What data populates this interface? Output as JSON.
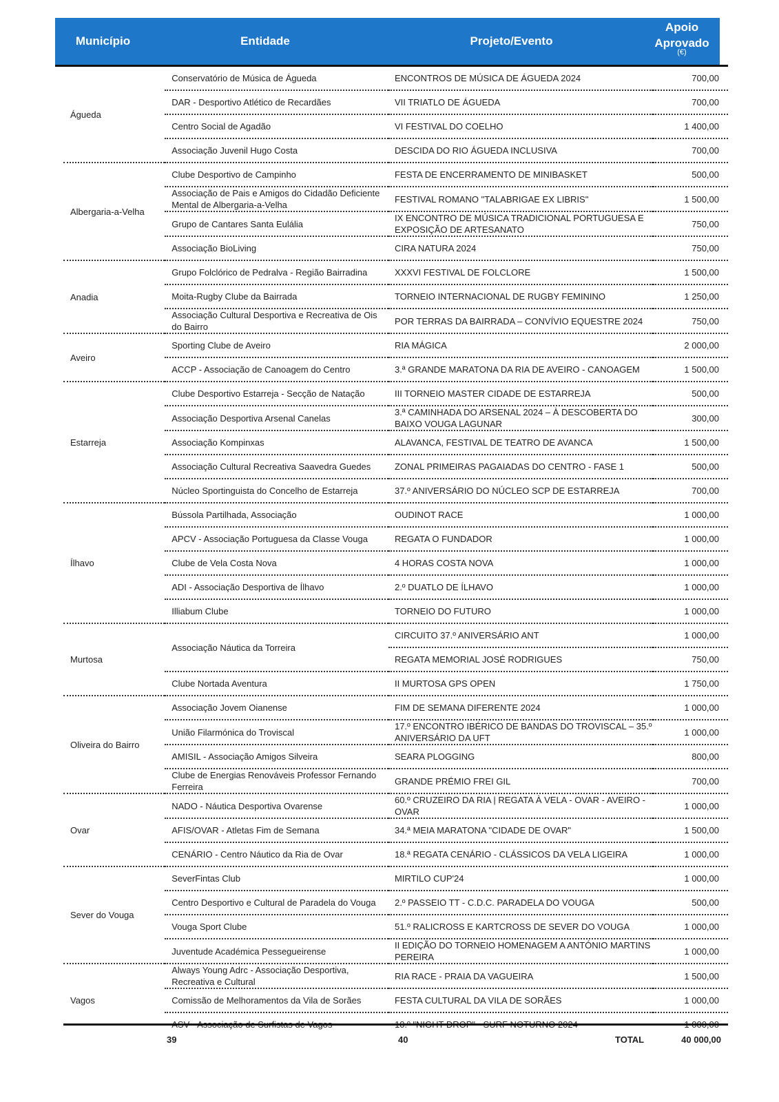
{
  "header": {
    "municipio": "Município",
    "entidade": "Entidade",
    "projeto": "Projeto/Evento",
    "apoio_line1": "Apoio",
    "apoio_line2": "Aprovado",
    "apoio_unit": "(€)"
  },
  "header_color": "#1f77c9",
  "groups": [
    {
      "municipio": "Águeda",
      "rows": [
        {
          "entidade": "Conservatório de Música de Águeda",
          "projetos": [
            {
              "projeto": "ENCONTROS DE MÚSICA DE ÁGUEDA 2024",
              "valor": "700,00"
            }
          ]
        },
        {
          "entidade": "DAR - Desportivo Atlético de Recardães",
          "projetos": [
            {
              "projeto": "VII TRIATLO DE ÁGUEDA",
              "valor": "700,00"
            }
          ]
        },
        {
          "entidade": "Centro Social de Agadão",
          "projetos": [
            {
              "projeto": "VI FESTIVAL DO COELHO",
              "valor": "1 400,00"
            }
          ]
        },
        {
          "entidade": "Associação Juvenil Hugo Costa",
          "projetos": [
            {
              "projeto": "DESCIDA DO RIO ÁGUEDA INCLUSIVA",
              "valor": "700,00"
            }
          ]
        }
      ]
    },
    {
      "municipio": "Albergaria-a-Velha",
      "rows": [
        {
          "entidade": "Clube Desportivo de Campinho",
          "projetos": [
            {
              "projeto": "FESTA DE ENCERRAMENTO DE MINIBASKET",
              "valor": "500,00"
            }
          ]
        },
        {
          "entidade": "Associação de Pais e Amigos do Cidadão Deficiente Mental de Albergaria-a-Velha",
          "projetos": [
            {
              "projeto": "FESTIVAL ROMANO \"TALABRIGAE EX LIBRIS\"",
              "valor": "1 500,00"
            }
          ]
        },
        {
          "entidade": "Grupo de Cantares Santa Eulália",
          "projetos": [
            {
              "projeto": "IX ENCONTRO DE MÚSICA TRADICIONAL PORTUGUESA E EXPOSIÇÃO DE ARTESANATO",
              "valor": "750,00"
            }
          ]
        },
        {
          "entidade": "Associação BioLiving",
          "projetos": [
            {
              "projeto": "CIRA NATURA 2024",
              "valor": "750,00"
            }
          ]
        }
      ]
    },
    {
      "municipio": "Anadia",
      "rows": [
        {
          "entidade": "Grupo Folclórico de Pedralva - Região Bairradina",
          "projetos": [
            {
              "projeto": "XXXVI FESTIVAL DE FOLCLORE",
              "valor": "1 500,00"
            }
          ]
        },
        {
          "entidade": "Moita-Rugby Clube da Bairrada",
          "projetos": [
            {
              "projeto": "TORNEIO INTERNACIONAL DE RUGBY FEMININO",
              "valor": "1 250,00"
            }
          ]
        },
        {
          "entidade": "Associação Cultural Desportiva e Recreativa de Ois do Bairro",
          "projetos": [
            {
              "projeto": "POR TERRAS DA BAIRRADA – CONVÍVIO EQUESTRE 2024",
              "valor": "750,00"
            }
          ]
        }
      ]
    },
    {
      "municipio": "Aveiro",
      "rows": [
        {
          "entidade": "Sporting Clube de Aveiro",
          "projetos": [
            {
              "projeto": "RIA MÁGICA",
              "valor": "2 000,00"
            }
          ]
        },
        {
          "entidade": "ACCP - Associação de Canoagem do Centro",
          "projetos": [
            {
              "projeto": "3.ª GRANDE MARATONA DA RIA DE AVEIRO - CANOAGEM",
              "valor": "1 500,00"
            }
          ]
        }
      ]
    },
    {
      "municipio": "Estarreja",
      "rows": [
        {
          "entidade": "Clube Desportivo Estarreja - Secção de Natação",
          "projetos": [
            {
              "projeto": "III TORNEIO MASTER CIDADE DE ESTARREJA",
              "valor": "500,00"
            }
          ]
        },
        {
          "entidade": "Associação Desportiva Arsenal Canelas",
          "projetos": [
            {
              "projeto": "3.ª CAMINHADA DO ARSENAL 2024 – À DESCOBERTA DO BAIXO VOUGA LAGUNAR",
              "valor": "300,00"
            }
          ]
        },
        {
          "entidade": "Associação Kompinxas",
          "projetos": [
            {
              "projeto": "ALAVANCA, FESTIVAL DE TEATRO DE AVANCA",
              "valor": "1 500,00"
            }
          ]
        },
        {
          "entidade": "Associação Cultural Recreativa Saavedra Guedes",
          "projetos": [
            {
              "projeto": "ZONAL PRIMEIRAS PAGAIADAS DO CENTRO - FASE 1",
              "valor": "500,00"
            }
          ]
        },
        {
          "entidade": "Núcleo Sportinguista do Concelho de Estarreja",
          "projetos": [
            {
              "projeto": "37.º ANIVERSÁRIO DO NÚCLEO SCP DE ESTARREJA",
              "valor": "700,00"
            }
          ]
        }
      ]
    },
    {
      "municipio": "Ílhavo",
      "rows": [
        {
          "entidade": "Bússola Partilhada, Associação",
          "projetos": [
            {
              "projeto": "OUDINOT RACE",
              "valor": "1 000,00"
            }
          ]
        },
        {
          "entidade": "APCV - Associação Portuguesa da Classe Vouga",
          "projetos": [
            {
              "projeto": "REGATA O FUNDADOR",
              "valor": "1 000,00"
            }
          ]
        },
        {
          "entidade": "Clube de Vela Costa Nova",
          "projetos": [
            {
              "projeto": "4 HORAS COSTA NOVA",
              "valor": "1 000,00"
            }
          ]
        },
        {
          "entidade": "ADI - Associação Desportiva de Ílhavo",
          "projetos": [
            {
              "projeto": "2.º DUATLO DE ÍLHAVO",
              "valor": "1 000,00"
            }
          ]
        },
        {
          "entidade": "Illiabum Clube",
          "projetos": [
            {
              "projeto": "TORNEIO DO FUTURO",
              "valor": "1 000,00"
            }
          ]
        }
      ]
    },
    {
      "municipio": "Murtosa",
      "rows": [
        {
          "entidade": "Associação Náutica da Torreira",
          "projetos": [
            {
              "projeto": "CIRCUITO 37.º ANIVERSÁRIO ANT",
              "valor": "1 000,00"
            },
            {
              "projeto": "REGATA MEMORIAL JOSÉ RODRIGUES",
              "valor": "750,00"
            }
          ]
        },
        {
          "entidade": "Clube Nortada Aventura",
          "projetos": [
            {
              "projeto": "II MURTOSA GPS OPEN",
              "valor": "1 750,00"
            }
          ]
        }
      ]
    },
    {
      "municipio": "Oliveira do Bairro",
      "rows": [
        {
          "entidade": "Associação Jovem Oianense",
          "projetos": [
            {
              "projeto": "FIM DE SEMANA DIFERENTE 2024",
              "valor": "1 000,00"
            }
          ]
        },
        {
          "entidade": "União Filarmónica do Troviscal",
          "projetos": [
            {
              "projeto": "17.º ENCONTRO IBÉRICO DE BANDAS DO TROVISCAL – 35.º ANIVERSÁRIO DA UFT",
              "valor": "1 000,00"
            }
          ]
        },
        {
          "entidade": "AMISIL - Associação Amigos Silveira",
          "projetos": [
            {
              "projeto": "SEARA PLOGGING",
              "valor": "800,00"
            }
          ]
        },
        {
          "entidade": "Clube de Energias Renováveis Professor Fernando Ferreira",
          "projetos": [
            {
              "projeto": "GRANDE PRÉMIO FREI GIL",
              "valor": "700,00"
            }
          ]
        }
      ]
    },
    {
      "municipio": "Ovar",
      "rows": [
        {
          "entidade": "NADO - Náutica Desportiva Ovarense",
          "projetos": [
            {
              "projeto": "60.º CRUZEIRO DA RIA | REGATA À VELA - OVAR - AVEIRO - OVAR",
              "valor": "1 000,00"
            }
          ]
        },
        {
          "entidade": "AFIS/OVAR - Atletas Fim de Semana",
          "projetos": [
            {
              "projeto": "34.ª MEIA MARATONA \"CIDADE DE OVAR\"",
              "valor": "1 500,00"
            }
          ]
        },
        {
          "entidade": "CENÁRIO - Centro Náutico da Ria de Ovar",
          "projetos": [
            {
              "projeto": "18.ª REGATA CENÁRIO - CLÁSSICOS DA VELA LIGEIRA",
              "valor": "1 000,00"
            }
          ]
        }
      ]
    },
    {
      "municipio": "Sever do Vouga",
      "rows": [
        {
          "entidade": "SeverFintas Club",
          "projetos": [
            {
              "projeto": "MIRTILO CUP'24",
              "valor": "1 000,00"
            }
          ]
        },
        {
          "entidade": "Centro Desportivo e Cultural de Paradela do Vouga",
          "projetos": [
            {
              "projeto": "2.º PASSEIO TT - C.D.C. PARADELA DO VOUGA",
              "valor": "500,00"
            }
          ]
        },
        {
          "entidade": "Vouga Sport Clube",
          "projetos": [
            {
              "projeto": "51.º RALICROSS E KARTCROSS DE SEVER DO VOUGA",
              "valor": "1 000,00"
            }
          ]
        },
        {
          "entidade": "Juventude Académica Pessegueirense",
          "projetos": [
            {
              "projeto": "II EDIÇÃO DO TORNEIO HOMENAGEM A ANTÓNIO MARTINS PEREIRA",
              "valor": "1 000,00"
            }
          ]
        }
      ]
    },
    {
      "municipio": "Vagos",
      "rows": [
        {
          "entidade": "Always Young Adrc - Associação Desportiva, Recreativa e Cultural",
          "projetos": [
            {
              "projeto": "RIA RACE - PRAIA DA VAGUEIRA",
              "valor": "1 500,00"
            }
          ]
        },
        {
          "entidade": "Comissão de Melhoramentos da Vila de Sorães",
          "projetos": [
            {
              "projeto": "FESTA CULTURAL DA VILA DE SORÃES",
              "valor": "1 000,00"
            }
          ]
        },
        {
          "entidade": "ASV - Associação de Surfistas de Vagos",
          "projetos": [
            {
              "projeto": "10.º \"NIGHT DROP\" - SURF NOTURNO 2024",
              "valor": "1 000,00"
            }
          ]
        }
      ]
    }
  ],
  "footer": {
    "count_entidades": "39",
    "count_projetos": "40",
    "total_label": "TOTAL",
    "total_value": "40 000,00"
  }
}
